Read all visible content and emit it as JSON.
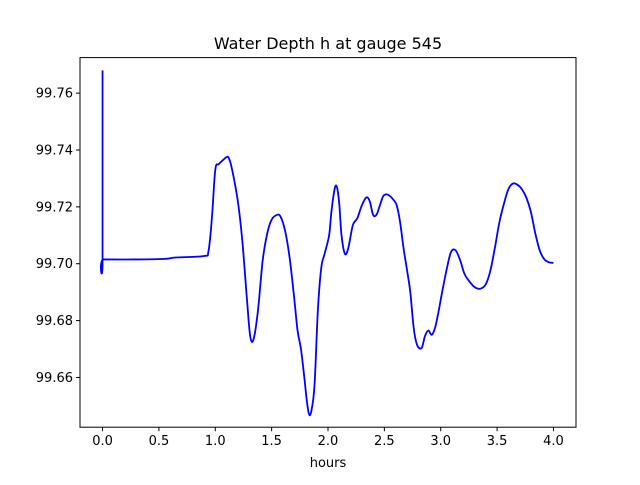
{
  "chart_data": {
    "type": "line",
    "title": "Water Depth h at gauge 545",
    "xlabel": "hours",
    "ylabel": "",
    "xlim": [
      -0.2,
      4.2
    ],
    "ylim": [
      99.6425,
      99.7725
    ],
    "grid": false,
    "x_ticks": [
      {
        "value": 0.0,
        "label": "0.0"
      },
      {
        "value": 0.5,
        "label": "0.5"
      },
      {
        "value": 1.0,
        "label": "1.0"
      },
      {
        "value": 1.5,
        "label": "1.5"
      },
      {
        "value": 2.0,
        "label": "2.0"
      },
      {
        "value": 2.5,
        "label": "2.5"
      },
      {
        "value": 3.0,
        "label": "3.0"
      },
      {
        "value": 3.5,
        "label": "3.5"
      },
      {
        "value": 4.0,
        "label": "4.0"
      }
    ],
    "y_ticks": [
      {
        "value": 99.66,
        "label": "99.66"
      },
      {
        "value": 99.68,
        "label": "99.68"
      },
      {
        "value": 99.7,
        "label": "99.70"
      },
      {
        "value": 99.72,
        "label": "99.72"
      },
      {
        "value": 99.74,
        "label": "99.74"
      },
      {
        "value": 99.76,
        "label": "99.76"
      }
    ],
    "series": [
      {
        "name": "h",
        "color": "#0000ff",
        "x": [
          0.0,
          0.0,
          0.01,
          0.3,
          0.55,
          0.65,
          0.9,
          0.94,
          0.97,
          1.0,
          1.03,
          1.07,
          1.1,
          1.12,
          1.15,
          1.2,
          1.24,
          1.28,
          1.31,
          1.34,
          1.38,
          1.42,
          1.46,
          1.5,
          1.55,
          1.58,
          1.62,
          1.66,
          1.7,
          1.73,
          1.76,
          1.79,
          1.81,
          1.83,
          1.85,
          1.88,
          1.91,
          1.94,
          1.97,
          2.01,
          2.03,
          2.06,
          2.08,
          2.1,
          2.12,
          2.15,
          2.18,
          2.22,
          2.26,
          2.3,
          2.34,
          2.37,
          2.4,
          2.43,
          2.46,
          2.49,
          2.52,
          2.55,
          2.58,
          2.61,
          2.64,
          2.67,
          2.7,
          2.73,
          2.76,
          2.79,
          2.83,
          2.86,
          2.89,
          2.92,
          2.95,
          2.98,
          3.01,
          3.05,
          3.09,
          3.13,
          3.17,
          3.21,
          3.25,
          3.3,
          3.35,
          3.4,
          3.44,
          3.48,
          3.52,
          3.56,
          3.6,
          3.64,
          3.68,
          3.72,
          3.76,
          3.8,
          3.84,
          3.88,
          3.92,
          3.96,
          4.0
        ],
        "y": [
          99.768,
          99.7015,
          99.7015,
          99.7015,
          99.7017,
          99.7022,
          99.7027,
          99.7045,
          99.716,
          99.733,
          99.735,
          99.7365,
          99.7375,
          99.7372,
          99.733,
          99.722,
          99.708,
          99.688,
          99.6745,
          99.6735,
          99.684,
          99.701,
          99.7105,
          99.7155,
          99.7172,
          99.7165,
          99.7115,
          99.702,
          99.688,
          99.6765,
          99.67,
          99.66,
          99.6525,
          99.6473,
          99.6478,
          99.657,
          99.6835,
          99.6985,
          99.7035,
          99.71,
          99.7182,
          99.7265,
          99.7268,
          99.721,
          99.71,
          99.7035,
          99.7055,
          99.7135,
          99.716,
          99.7205,
          99.7233,
          99.722,
          99.7172,
          99.7172,
          99.7205,
          99.7238,
          99.7244,
          99.7238,
          99.7225,
          99.7205,
          99.7145,
          99.7055,
          99.698,
          99.69,
          99.6775,
          99.6715,
          99.6703,
          99.6745,
          99.6765,
          99.675,
          99.6775,
          99.683,
          99.6895,
          99.6975,
          99.704,
          99.7048,
          99.7015,
          99.6965,
          99.694,
          99.6918,
          99.6912,
          99.6928,
          99.6975,
          99.7055,
          99.7145,
          99.721,
          99.7262,
          99.7282,
          99.7278,
          99.7262,
          99.7232,
          99.7182,
          99.7105,
          99.7045,
          99.7015,
          99.7005,
          99.7003
        ]
      }
    ]
  }
}
